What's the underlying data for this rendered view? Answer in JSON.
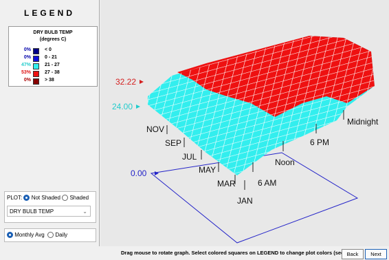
{
  "legend": {
    "title": "LEGEND",
    "heading": "DRY BULB TEMP",
    "units": "(degrees C)",
    "rows": [
      {
        "percent": "0%",
        "range": "< 0"
      },
      {
        "percent": "0%",
        "range": "0 - 21"
      },
      {
        "percent": "47%",
        "range": "21 - 27"
      },
      {
        "percent": "53%",
        "range": "27 - 38"
      },
      {
        "percent": "0%",
        "range": "> 38"
      }
    ]
  },
  "plot": {
    "levels": [
      "32.22",
      "24.00",
      "0.00"
    ],
    "months": [
      "NOV",
      "SEP",
      "JUL",
      "MAY",
      "MAR",
      "JAN"
    ],
    "hours": [
      "Midnight",
      "6 PM",
      "Noon",
      "6 AM"
    ]
  },
  "controls": {
    "plot_label": "PLOT:",
    "not_shaded": "Not Shaded",
    "shaded": "Shaded",
    "variable": "DRY BULB TEMP",
    "monthly": "Monthly Avg",
    "daily": "Daily"
  },
  "footer": {
    "hint": "Drag mouse to rotate graph.  Select colored squares on LEGEND to change plot colors (see Help).",
    "back": "Back",
    "next": "Next"
  }
}
